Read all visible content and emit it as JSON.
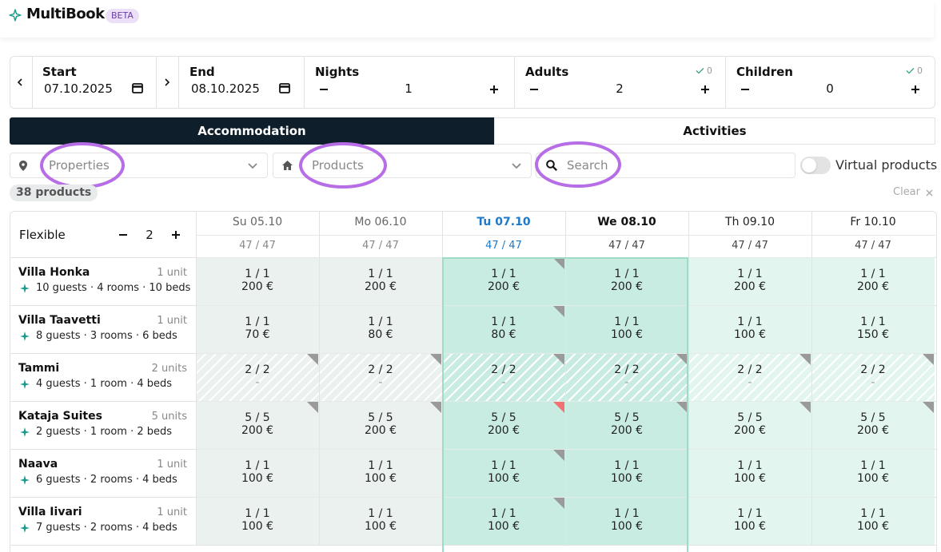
{
  "header": {
    "brand": "MultiBook",
    "badge": "BETA"
  },
  "booking_bar": {
    "start": {
      "label": "Start",
      "value": "07.10.2025"
    },
    "end": {
      "label": "End",
      "value": "08.10.2025"
    },
    "nights": {
      "label": "Nights",
      "value": 1
    },
    "adults": {
      "label": "Adults",
      "value": 2,
      "checked": 0
    },
    "children": {
      "label": "Children",
      "value": 0,
      "checked": 0
    }
  },
  "tabs": [
    "Accommodation",
    "Activities"
  ],
  "filters": {
    "properties": "Properties",
    "products": "Products",
    "search": "Search",
    "virtual_products": "Virtual products"
  },
  "result_count": "38 products",
  "clear": "Clear",
  "calendar": {
    "flexible_label": "Flexible",
    "flexible_value": 2,
    "days": [
      {
        "label": "Su 05.10",
        "availability": "47 / 47"
      },
      {
        "label": "Mo 06.10",
        "availability": "47 / 47"
      },
      {
        "label": "Tu 07.10",
        "availability": "47 / 47"
      },
      {
        "label": "We 08.10",
        "availability": "47 / 47"
      },
      {
        "label": "Th 09.10",
        "availability": "47 / 47"
      },
      {
        "label": "Fr 10.10",
        "availability": "47 / 47"
      }
    ],
    "rows": [
      {
        "name": "Villa Honka",
        "units": "1 unit",
        "details": "10 guests · 4 rooms · 10 beds",
        "cells": [
          {
            "availability": "1 / 1",
            "price": "200 €"
          },
          {
            "availability": "1 / 1",
            "price": "200 €"
          },
          {
            "availability": "1 / 1",
            "price": "200 €",
            "corner": "#9a9a9a"
          },
          {
            "availability": "1 / 1",
            "price": "200 €"
          },
          {
            "availability": "1 / 1",
            "price": "200 €"
          },
          {
            "availability": "1 / 1",
            "price": "200 €"
          }
        ]
      },
      {
        "name": "Villa Taavetti",
        "units": "1 unit",
        "details": "8 guests · 3 rooms · 6 beds",
        "cells": [
          {
            "availability": "1 / 1",
            "price": "70 €"
          },
          {
            "availability": "1 / 1",
            "price": "80 €"
          },
          {
            "availability": "1 / 1",
            "price": "80 €",
            "corner": "#9a9a9a"
          },
          {
            "availability": "1 / 1",
            "price": "100 €"
          },
          {
            "availability": "1 / 1",
            "price": "100 €"
          },
          {
            "availability": "1 / 1",
            "price": "150 €"
          }
        ]
      },
      {
        "name": "Tammi",
        "units": "2 units",
        "details": "4 guests · 1 room · 4 beds",
        "hatched": true,
        "cells": [
          {
            "availability": "2 / 2",
            "price": "-",
            "corner": "#9a9a9a"
          },
          {
            "availability": "2 / 2",
            "price": "-",
            "corner": "#9a9a9a"
          },
          {
            "availability": "2 / 2",
            "price": "-",
            "corner": "#9a9a9a"
          },
          {
            "availability": "2 / 2",
            "price": "-",
            "corner": "#9a9a9a"
          },
          {
            "availability": "2 / 2",
            "price": "-",
            "corner": "#9a9a9a"
          },
          {
            "availability": "2 / 2",
            "price": "-",
            "corner": "#9a9a9a"
          }
        ]
      },
      {
        "name": "Kataja Suites",
        "units": "5 units",
        "details": "2 guests · 1 room · 2 beds",
        "cells": [
          {
            "availability": "5 / 5",
            "price": "200 €",
            "corner": "#9a9a9a"
          },
          {
            "availability": "5 / 5",
            "price": "200 €",
            "corner": "#9a9a9a"
          },
          {
            "availability": "5 / 5",
            "price": "200 €",
            "corner": "#f07272"
          },
          {
            "availability": "5 / 5",
            "price": "200 €",
            "corner": "#9a9a9a"
          },
          {
            "availability": "5 / 5",
            "price": "200 €",
            "corner": "#9a9a9a"
          },
          {
            "availability": "5 / 5",
            "price": "200 €",
            "corner": "#9a9a9a"
          }
        ]
      },
      {
        "name": "Naava",
        "units": "1 unit",
        "details": "6 guests · 2 rooms · 4 beds",
        "cells": [
          {
            "availability": "1 / 1",
            "price": "100 €"
          },
          {
            "availability": "1 / 1",
            "price": "100 €"
          },
          {
            "availability": "1 / 1",
            "price": "100 €",
            "corner": "#9a9a9a"
          },
          {
            "availability": "1 / 1",
            "price": "100 €"
          },
          {
            "availability": "1 / 1",
            "price": "100 €"
          },
          {
            "availability": "1 / 1",
            "price": "100 €"
          }
        ]
      },
      {
        "name": "Villa Iivari",
        "units": "1 unit",
        "details": "7 guests · 2 rooms · 4 beds",
        "cells": [
          {
            "availability": "1 / 1",
            "price": "100 €"
          },
          {
            "availability": "1 / 1",
            "price": "100 €"
          },
          {
            "availability": "1 / 1",
            "price": "100 €",
            "corner": "#9a9a9a"
          },
          {
            "availability": "1 / 1",
            "price": "100 €"
          },
          {
            "availability": "1 / 1",
            "price": "100 €"
          },
          {
            "availability": "1 / 1",
            "price": "100 €"
          }
        ]
      }
    ]
  }
}
